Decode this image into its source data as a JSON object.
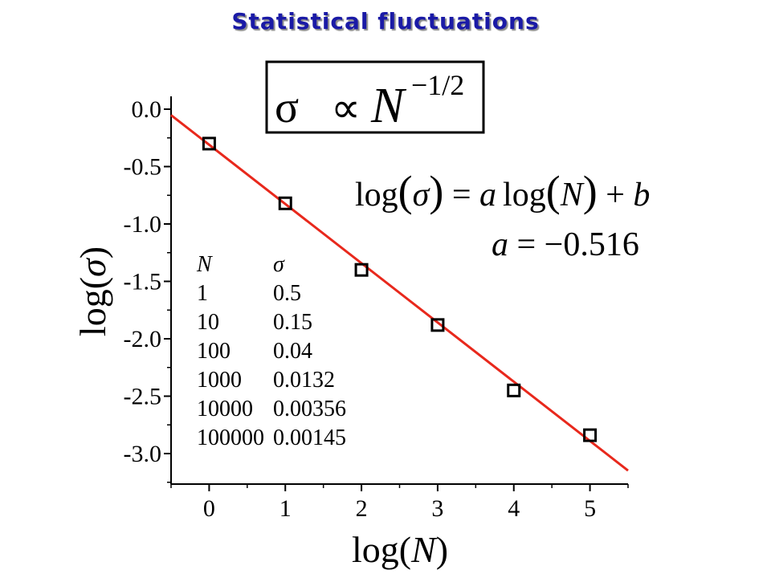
{
  "title": "Statistical fluctuations",
  "formula_box": {
    "lhs": "σ",
    "op": "∝",
    "base": "N",
    "exponent": "−1/2"
  },
  "equation": {
    "text_log": "log",
    "text_sigma": "σ",
    "text_eq": " = ",
    "text_a": "a",
    "text_N": "N",
    "text_plus": " + ",
    "text_b": "b"
  },
  "slope_label": {
    "var": "a",
    "rest": " = −0.516"
  },
  "table": {
    "headers": [
      "N",
      "σ"
    ],
    "rows": [
      [
        "1",
        "0.5"
      ],
      [
        "10",
        "0.15"
      ],
      [
        "100",
        "0.04"
      ],
      [
        "1000",
        "0.0132"
      ],
      [
        "10000",
        "0.00356"
      ],
      [
        "100000",
        "0.00145"
      ]
    ]
  },
  "chart_data": {
    "type": "scatter",
    "xlabel": "log(N)",
    "ylabel": "log(σ)",
    "xlim": [
      -0.5,
      5.5
    ],
    "ylim": [
      -3.3,
      0.0
    ],
    "x_ticks": [
      "0",
      "1",
      "2",
      "3",
      "4",
      "5"
    ],
    "y_ticks": [
      "0.0",
      "-0.5",
      "-1.0",
      "-1.5",
      "-2.0",
      "-2.5",
      "-3.0"
    ],
    "series": [
      {
        "marker": "open-square",
        "points": [
          {
            "x": 0,
            "y": -0.3
          },
          {
            "x": 1,
            "y": -0.82
          },
          {
            "x": 2,
            "y": -1.4
          },
          {
            "x": 3,
            "y": -1.88
          },
          {
            "x": 4,
            "y": -2.45
          },
          {
            "x": 5,
            "y": -2.84
          }
        ]
      }
    ],
    "fit_line": {
      "slope": -0.516,
      "intercept": -0.31,
      "color": "#e8281c"
    },
    "grid": false
  }
}
